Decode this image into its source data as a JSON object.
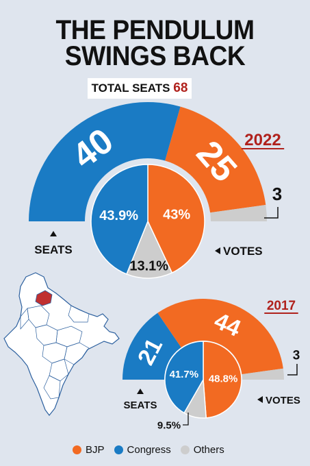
{
  "title_line1": "THE PENDULUM",
  "title_line2": "SWINGS BACK",
  "total_seats_label": "TOTAL SEATS",
  "total_seats_value": "68",
  "colors": {
    "BJP": "#f26a22",
    "Congress": "#1a7bc4",
    "Others": "#cdcdcd"
  },
  "legend": [
    {
      "name": "BJP",
      "color": "#f26a22"
    },
    {
      "name": "Congress",
      "color": "#1a7bc4"
    },
    {
      "name": "Others",
      "color": "#cdcdcd"
    }
  ],
  "chart_data": [
    {
      "type": "semi-donut + pie",
      "year": "2022",
      "seats_label": "SEATS",
      "votes_label": "VOTES",
      "seats": [
        {
          "party": "Congress",
          "value": 40,
          "label": "40"
        },
        {
          "party": "BJP",
          "value": 25,
          "label": "25"
        },
        {
          "party": "Others",
          "value": 3,
          "label": "3"
        }
      ],
      "votes": [
        {
          "party": "Congress",
          "value": 43.9,
          "label": "43.9%"
        },
        {
          "party": "BJP",
          "value": 43,
          "label": "43%"
        },
        {
          "party": "Others",
          "value": 13.1,
          "label": "13.1%"
        }
      ]
    },
    {
      "type": "semi-donut + pie",
      "year": "2017",
      "seats_label": "SEATS",
      "votes_label": "VOTES",
      "seats": [
        {
          "party": "Congress",
          "value": 21,
          "label": "21"
        },
        {
          "party": "BJP",
          "value": 44,
          "label": "44"
        },
        {
          "party": "Others",
          "value": 3,
          "label": "3"
        }
      ],
      "votes": [
        {
          "party": "Congress",
          "value": 41.7,
          "label": "41.7%"
        },
        {
          "party": "BJP",
          "value": 48.8,
          "label": "48.8%"
        },
        {
          "party": "Others",
          "value": 9.5,
          "label": "9.5%"
        }
      ]
    }
  ]
}
